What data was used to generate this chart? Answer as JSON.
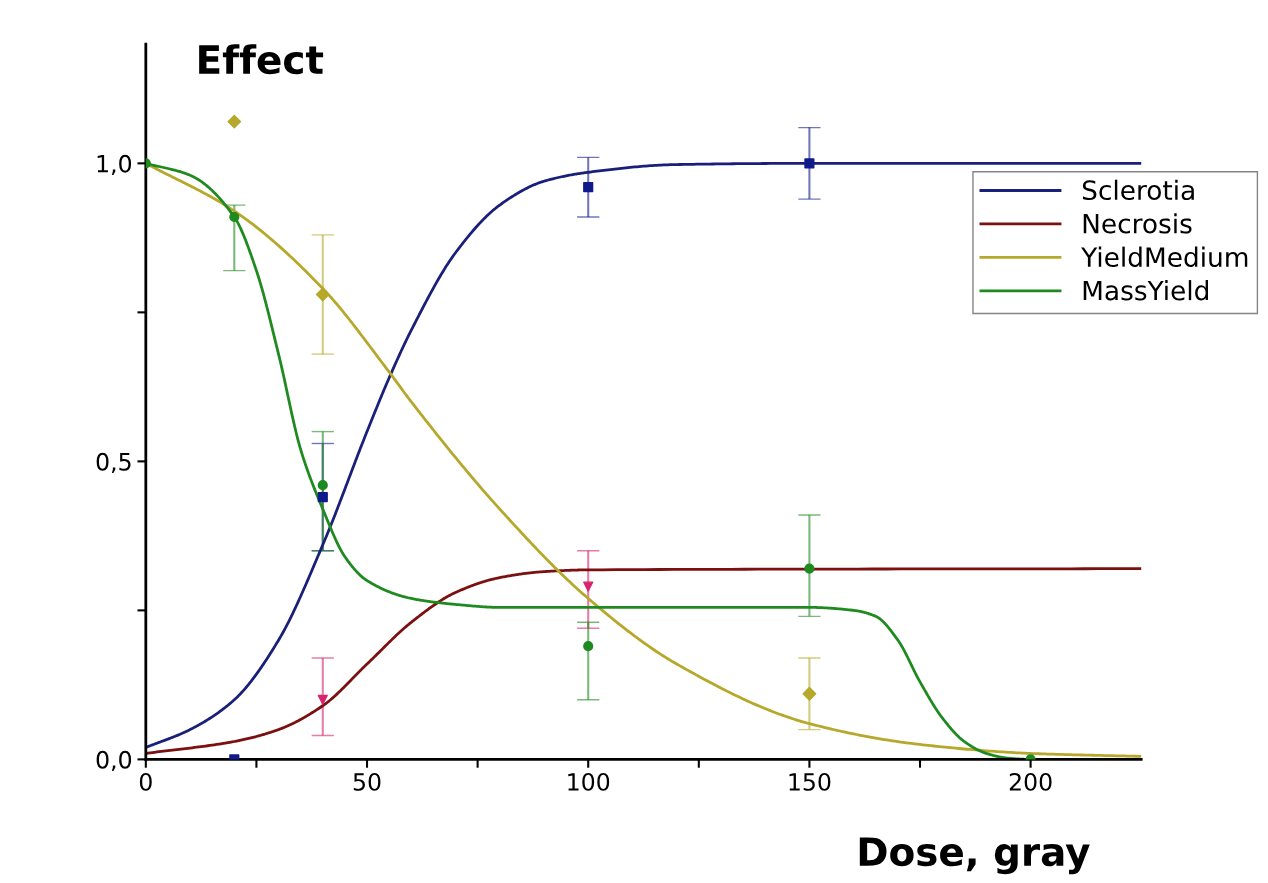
{
  "chart_data": {
    "type": "line",
    "xlabel": "Dose, gray",
    "ylabel": "Effect",
    "xlim": [
      0,
      225
    ],
    "ylim": [
      0,
      1.2
    ],
    "xticks": [
      0,
      {
        "value": 25,
        "label": null
      },
      50,
      {
        "value": 75,
        "label": null
      },
      100,
      {
        "value": 125,
        "label": null
      },
      150,
      {
        "value": 175,
        "label": null
      },
      200
    ],
    "yticks": [
      {
        "value": 0,
        "label": "0,0"
      },
      {
        "value": 0.25,
        "label": null
      },
      {
        "value": 0.5,
        "label": "0,5"
      },
      {
        "value": 0.75,
        "label": null
      },
      {
        "value": 1.0,
        "label": "1,0"
      }
    ],
    "grid": false,
    "legend": "right",
    "line_style": "solid",
    "marker": "none",
    "series": [
      {
        "name": "Sclerotia",
        "color": "#1a1f7a",
        "x": [
          0,
          10,
          20,
          30,
          40,
          50,
          55,
          60,
          70,
          80,
          90,
          100,
          120,
          150,
          225
        ],
        "values": [
          0.02,
          0.05,
          0.1,
          0.2,
          0.36,
          0.55,
          0.64,
          0.72,
          0.85,
          0.93,
          0.97,
          0.985,
          0.998,
          1.0,
          1.0
        ]
      },
      {
        "name": "Necrosis",
        "color": "#7a1010",
        "x": [
          0,
          20,
          30,
          40,
          50,
          60,
          70,
          80,
          90,
          100,
          225
        ],
        "values": [
          0.01,
          0.03,
          0.05,
          0.09,
          0.16,
          0.23,
          0.28,
          0.305,
          0.315,
          0.318,
          0.32
        ]
      },
      {
        "name": "YieldMedium",
        "color": "#b5a82a",
        "x": [
          0,
          20,
          40,
          55,
          60,
          80,
          100,
          120,
          150,
          175,
          200,
          225
        ],
        "values": [
          1.0,
          0.92,
          0.79,
          0.65,
          0.6,
          0.42,
          0.27,
          0.16,
          0.06,
          0.025,
          0.01,
          0.005
        ]
      },
      {
        "name": "MassYield",
        "color": "#1f8a1f",
        "x": [
          0,
          10,
          20,
          25,
          30,
          35,
          40,
          45,
          50,
          60,
          70,
          80,
          150,
          160,
          165,
          170,
          175,
          180,
          185,
          190,
          195,
          200,
          225
        ],
        "values": [
          1.0,
          0.98,
          0.91,
          0.82,
          0.68,
          0.52,
          0.42,
          0.34,
          0.3,
          0.27,
          0.26,
          0.255,
          0.255,
          0.25,
          0.24,
          0.2,
          0.13,
          0.07,
          0.03,
          0.01,
          0.002,
          0,
          0
        ]
      },
      {
        "type": "scatter",
        "color": "#101a8a",
        "marker": "square",
        "x": [
          20,
          40,
          100,
          150
        ],
        "values": [
          0.0,
          0.44,
          0.96,
          1.0
        ],
        "errors": [
          null,
          [
            0.35,
            0.53
          ],
          [
            0.91,
            1.01
          ],
          [
            0.94,
            1.06
          ]
        ]
      },
      {
        "type": "scatter",
        "color": "#d6246e",
        "marker": "triangle",
        "x": [
          40,
          100
        ],
        "values": [
          0.1,
          0.29
        ],
        "errors": [
          [
            0.04,
            0.17
          ],
          [
            0.22,
            0.35
          ]
        ]
      },
      {
        "type": "scatter",
        "color": "#b5a82a",
        "marker": "diamond",
        "x": [
          20,
          40,
          150
        ],
        "values": [
          1.07,
          0.78,
          0.11
        ],
        "errors": [
          null,
          [
            0.68,
            0.88
          ],
          [
            0.05,
            0.17
          ]
        ]
      },
      {
        "type": "scatter",
        "color": "#1f8a1f",
        "marker": "circle",
        "x": [
          0,
          20,
          40,
          100,
          150,
          200
        ],
        "values": [
          1.0,
          0.91,
          0.46,
          0.19,
          0.32,
          0.0
        ],
        "errors": [
          null,
          [
            0.82,
            0.93
          ],
          [
            0.35,
            0.55
          ],
          [
            0.1,
            0.23
          ],
          [
            0.24,
            0.41
          ],
          null
        ]
      }
    ]
  }
}
